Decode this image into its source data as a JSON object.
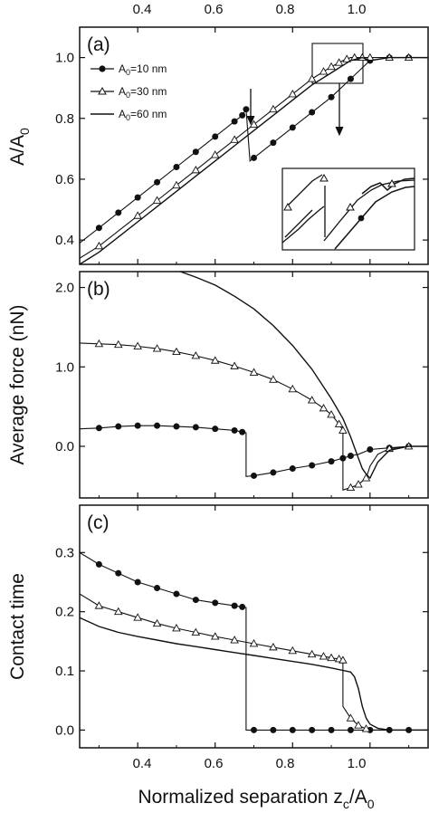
{
  "figure": {
    "xlabel_main": "Normalized separation z",
    "xlabel_sub": "c",
    "xlabel_tail": "/A",
    "xlabel_sub2": "0"
  },
  "chart_data": [
    {
      "type": "line",
      "panel_label": "(a)",
      "ylabel": "A/A",
      "ylabel_sub": "0",
      "xlim": [
        0.25,
        1.15
      ],
      "ylim": [
        0.32,
        1.1
      ],
      "xticks": [
        "0.4",
        "0.6",
        "0.8",
        "1.0"
      ],
      "yticks": [
        "0.4",
        "0.6",
        "0.8",
        "1.0"
      ],
      "ytick_values": [
        0.4,
        0.6,
        0.8,
        1.0
      ],
      "legend_placement": "upper-left",
      "series": [
        {
          "name": "A0=10 nm",
          "legend_main": "A",
          "legend_sub": "0",
          "legend_tail": "=10 nm",
          "marker": "filled-circle",
          "x": [
            0.25,
            0.3,
            0.35,
            0.4,
            0.45,
            0.5,
            0.55,
            0.6,
            0.65,
            0.66,
            0.67,
            0.68,
            0.69,
            0.7,
            0.75,
            0.8,
            0.85,
            0.9,
            0.95,
            1.0,
            1.05,
            1.1,
            1.15
          ],
          "y": [
            0.39,
            0.44,
            0.49,
            0.54,
            0.59,
            0.64,
            0.69,
            0.74,
            0.79,
            0.8,
            0.81,
            0.83,
            0.66,
            0.67,
            0.72,
            0.77,
            0.82,
            0.87,
            0.93,
            0.99,
            1.0,
            1.0,
            1.0
          ],
          "markers": [
            0.3,
            0.35,
            0.4,
            0.45,
            0.5,
            0.55,
            0.6,
            0.65,
            0.67,
            0.68,
            0.7,
            0.75,
            0.8,
            0.85,
            0.9,
            0.95,
            1.0,
            1.05,
            1.1
          ]
        },
        {
          "name": "A0=30 nm",
          "legend_main": "A",
          "legend_sub": "0",
          "legend_tail": "=30 nm",
          "marker": "open-triangle",
          "x": [
            0.25,
            0.3,
            0.35,
            0.4,
            0.45,
            0.5,
            0.55,
            0.6,
            0.65,
            0.7,
            0.75,
            0.8,
            0.85,
            0.9,
            0.93,
            0.95,
            0.97,
            1.0,
            1.05,
            1.1,
            1.15
          ],
          "y": [
            0.34,
            0.38,
            0.43,
            0.48,
            0.53,
            0.58,
            0.63,
            0.68,
            0.73,
            0.78,
            0.83,
            0.88,
            0.93,
            0.97,
            0.99,
            1.0,
            1.0,
            1.0,
            1.0,
            1.0,
            1.0
          ],
          "markers": [
            0.3,
            0.4,
            0.45,
            0.5,
            0.55,
            0.6,
            0.65,
            0.7,
            0.75,
            0.8,
            0.85,
            0.88,
            0.9,
            0.92,
            0.94,
            0.96,
            0.98,
            1.0,
            1.05,
            1.1
          ]
        },
        {
          "name": "A0=60 nm",
          "legend_main": "A",
          "legend_sub": "0",
          "legend_tail": "=60 nm",
          "marker": "none",
          "x": [
            0.25,
            0.3,
            0.35,
            0.4,
            0.45,
            0.5,
            0.55,
            0.6,
            0.65,
            0.7,
            0.75,
            0.8,
            0.85,
            0.9,
            0.95,
            0.98,
            1.0,
            1.05,
            1.1,
            1.15
          ],
          "y": [
            0.32,
            0.36,
            0.41,
            0.46,
            0.51,
            0.56,
            0.61,
            0.66,
            0.71,
            0.76,
            0.81,
            0.86,
            0.91,
            0.95,
            0.99,
            1.0,
            0.99,
            1.0,
            1.0,
            1.0
          ],
          "markers": []
        }
      ],
      "annotations": [
        "arrow at x=0.68 pointing down to lower branch",
        "zoom box near x=0.95 with arrow to inset",
        "inset enlarging region near the jump"
      ]
    },
    {
      "type": "line",
      "panel_label": "(b)",
      "ylabel": "Average force (nN)",
      "xlim": [
        0.25,
        1.15
      ],
      "ylim": [
        -0.65,
        2.2
      ],
      "yticks": [
        "0.0",
        "1.0",
        "2.0"
      ],
      "ytick_values": [
        0.0,
        1.0,
        2.0
      ],
      "series": [
        {
          "name": "A0=10 nm",
          "marker": "filled-circle",
          "x": [
            0.25,
            0.3,
            0.35,
            0.4,
            0.45,
            0.5,
            0.55,
            0.6,
            0.65,
            0.67,
            0.68,
            0.68,
            0.7,
            0.75,
            0.8,
            0.85,
            0.9,
            0.93,
            0.95,
            0.97,
            0.99,
            1.0,
            1.05,
            1.1,
            1.15
          ],
          "y": [
            0.22,
            0.23,
            0.25,
            0.26,
            0.26,
            0.25,
            0.24,
            0.22,
            0.2,
            0.18,
            0.17,
            -0.38,
            -0.37,
            -0.33,
            -0.28,
            -0.24,
            -0.19,
            -0.15,
            -0.12,
            -0.1,
            -0.06,
            -0.04,
            -0.02,
            0.0,
            0.0
          ],
          "markers": [
            0.3,
            0.35,
            0.4,
            0.45,
            0.5,
            0.55,
            0.6,
            0.65,
            0.67,
            0.7,
            0.75,
            0.8,
            0.85,
            0.9,
            0.93,
            0.95,
            1.0,
            1.05,
            1.1
          ]
        },
        {
          "name": "A0=30 nm",
          "marker": "open-triangle",
          "x": [
            0.25,
            0.3,
            0.35,
            0.4,
            0.45,
            0.5,
            0.55,
            0.6,
            0.65,
            0.7,
            0.75,
            0.8,
            0.85,
            0.88,
            0.9,
            0.92,
            0.93,
            0.93,
            0.95,
            0.97,
            0.99,
            1.0,
            1.02,
            1.05,
            1.1,
            1.15
          ],
          "y": [
            1.3,
            1.29,
            1.28,
            1.26,
            1.23,
            1.19,
            1.14,
            1.08,
            1.01,
            0.93,
            0.84,
            0.72,
            0.58,
            0.48,
            0.4,
            0.28,
            0.2,
            -0.55,
            -0.52,
            -0.48,
            -0.4,
            -0.25,
            -0.1,
            -0.03,
            0.0,
            0.0
          ],
          "markers": [
            0.3,
            0.35,
            0.4,
            0.45,
            0.5,
            0.55,
            0.6,
            0.65,
            0.7,
            0.75,
            0.8,
            0.85,
            0.88,
            0.9,
            0.92,
            0.93,
            0.95,
            0.97,
            0.99,
            1.05,
            1.1
          ]
        },
        {
          "name": "A0=60 nm",
          "marker": "none",
          "x": [
            0.51,
            0.55,
            0.6,
            0.65,
            0.7,
            0.75,
            0.8,
            0.85,
            0.9,
            0.93,
            0.95,
            0.97,
            0.98,
            0.99,
            1.0,
            1.02,
            1.05,
            1.1,
            1.15
          ],
          "y": [
            2.2,
            2.13,
            2.03,
            1.89,
            1.73,
            1.52,
            1.27,
            0.97,
            0.6,
            0.35,
            0.12,
            -0.15,
            -0.28,
            -0.35,
            -0.4,
            -0.2,
            -0.05,
            0.0,
            0.0
          ],
          "markers": []
        }
      ]
    },
    {
      "type": "line",
      "panel_label": "(c)",
      "ylabel": "Contact time",
      "xlim": [
        0.25,
        1.15
      ],
      "ylim": [
        -0.03,
        0.38
      ],
      "xticks": [
        "0.4",
        "0.6",
        "0.8",
        "1.0"
      ],
      "yticks": [
        "0.0",
        "0.1",
        "0.2",
        "0.3"
      ],
      "ytick_values": [
        0.0,
        0.1,
        0.2,
        0.3
      ],
      "series": [
        {
          "name": "A0=10 nm",
          "marker": "filled-circle",
          "x": [
            0.25,
            0.3,
            0.35,
            0.4,
            0.45,
            0.5,
            0.55,
            0.6,
            0.65,
            0.67,
            0.68,
            0.68,
            0.7,
            0.75,
            0.8,
            0.85,
            0.9,
            0.95,
            1.0,
            1.05,
            1.1,
            1.15
          ],
          "y": [
            0.3,
            0.28,
            0.265,
            0.25,
            0.24,
            0.23,
            0.22,
            0.215,
            0.21,
            0.208,
            0.207,
            0.0,
            0.0,
            0.0,
            0.0,
            0.0,
            0.0,
            0.0,
            0.0,
            0.0,
            0.0,
            0.0
          ],
          "markers": [
            0.3,
            0.35,
            0.4,
            0.45,
            0.5,
            0.55,
            0.6,
            0.65,
            0.67,
            0.7,
            0.75,
            0.8,
            0.85,
            0.9,
            0.95,
            1.0,
            1.05,
            1.1
          ]
        },
        {
          "name": "A0=30 nm",
          "marker": "open-triangle",
          "x": [
            0.25,
            0.3,
            0.35,
            0.4,
            0.45,
            0.5,
            0.55,
            0.6,
            0.65,
            0.7,
            0.75,
            0.8,
            0.85,
            0.9,
            0.92,
            0.93,
            0.93,
            0.95,
            0.97,
            0.99,
            1.0,
            1.05,
            1.1,
            1.15
          ],
          "y": [
            0.23,
            0.21,
            0.2,
            0.19,
            0.18,
            0.172,
            0.165,
            0.158,
            0.152,
            0.146,
            0.14,
            0.134,
            0.128,
            0.122,
            0.12,
            0.118,
            0.04,
            0.02,
            0.008,
            0.002,
            0.0,
            0.0,
            0.0,
            0.0
          ],
          "markers": [
            0.3,
            0.35,
            0.4,
            0.45,
            0.5,
            0.55,
            0.6,
            0.65,
            0.7,
            0.75,
            0.8,
            0.85,
            0.88,
            0.9,
            0.92,
            0.93,
            0.95,
            0.97,
            0.99
          ]
        },
        {
          "name": "A0=60 nm",
          "marker": "none",
          "x": [
            0.25,
            0.3,
            0.35,
            0.4,
            0.45,
            0.5,
            0.55,
            0.6,
            0.65,
            0.7,
            0.75,
            0.8,
            0.85,
            0.9,
            0.95,
            0.96,
            0.97,
            0.98,
            0.99,
            1.0,
            1.02,
            1.05,
            1.1,
            1.15
          ],
          "y": [
            0.19,
            0.175,
            0.165,
            0.158,
            0.152,
            0.146,
            0.141,
            0.136,
            0.131,
            0.126,
            0.121,
            0.116,
            0.111,
            0.105,
            0.098,
            0.09,
            0.07,
            0.04,
            0.02,
            0.01,
            0.003,
            0.0,
            0.0,
            0.0
          ],
          "markers": []
        }
      ]
    }
  ]
}
